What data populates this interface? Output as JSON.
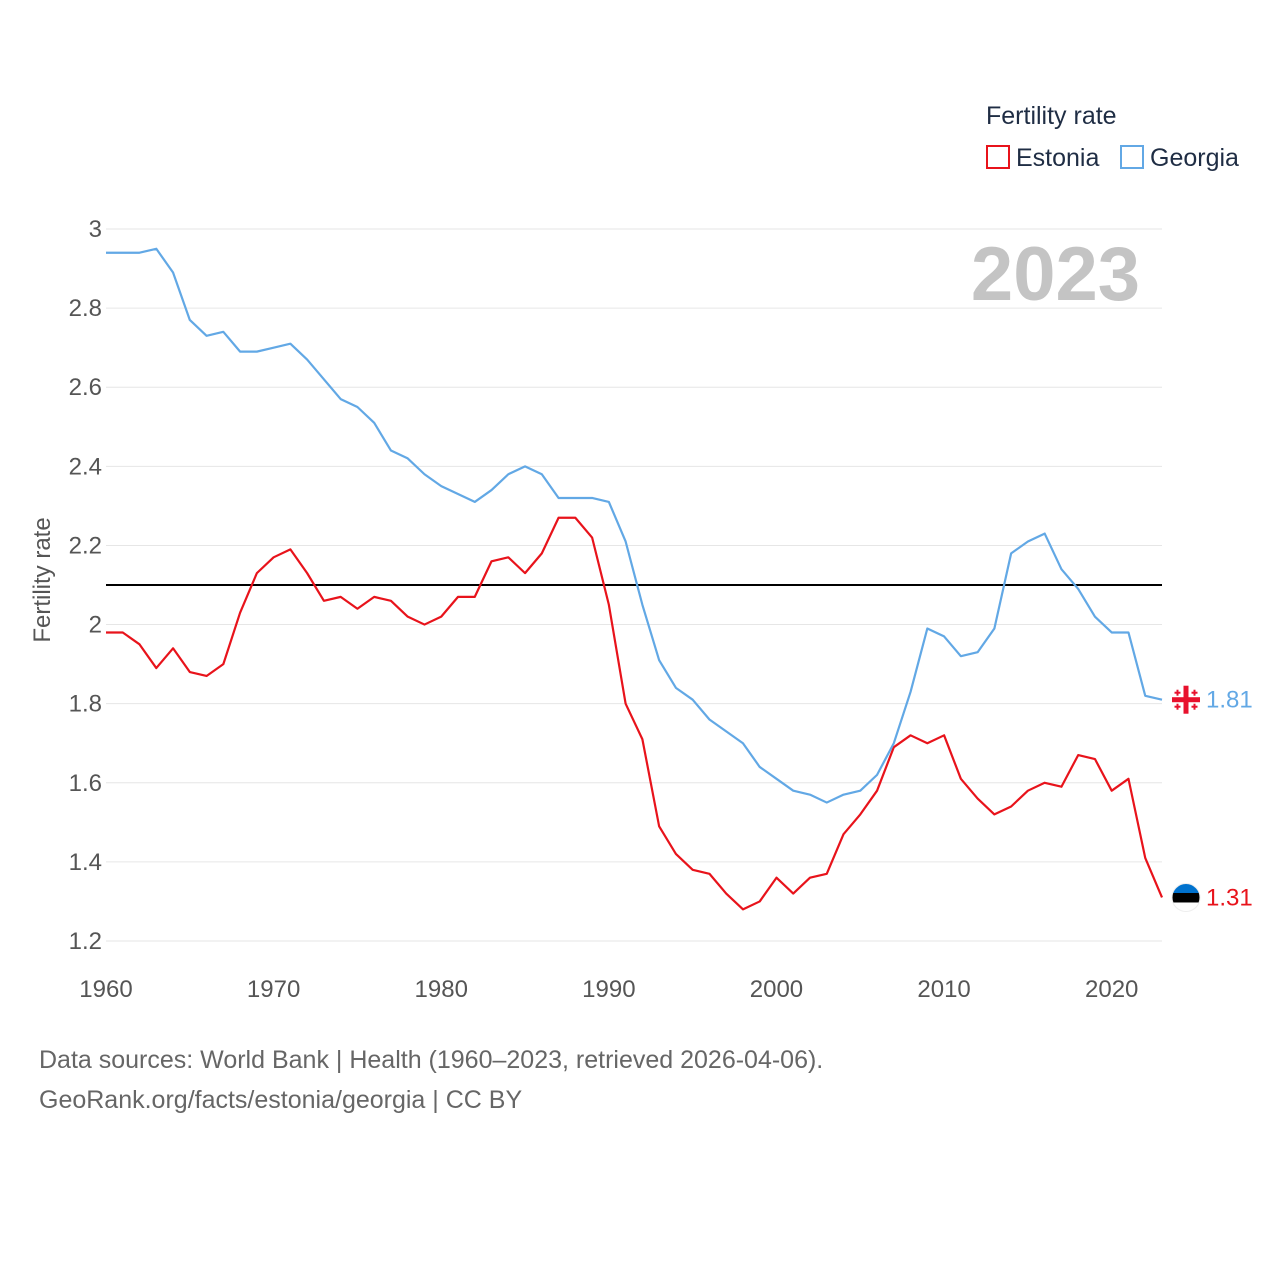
{
  "chart_data": {
    "type": "line",
    "title": "Fertility rate",
    "ylabel": "Fertility rate",
    "xlabel": "",
    "ylim": [
      1.2,
      3.0
    ],
    "xlim": [
      1960,
      2023
    ],
    "xticks": [
      1960,
      1970,
      1980,
      1990,
      2000,
      2010,
      2020
    ],
    "yticks": [
      1.2,
      1.4,
      1.6,
      1.8,
      2,
      2.2,
      2.4,
      2.6,
      2.8,
      3
    ],
    "reference_line": 2.1,
    "year_label": "2023",
    "x": [
      1960,
      1961,
      1962,
      1963,
      1964,
      1965,
      1966,
      1967,
      1968,
      1969,
      1970,
      1971,
      1972,
      1973,
      1974,
      1975,
      1976,
      1977,
      1978,
      1979,
      1980,
      1981,
      1982,
      1983,
      1984,
      1985,
      1986,
      1987,
      1988,
      1989,
      1990,
      1991,
      1992,
      1993,
      1994,
      1995,
      1996,
      1997,
      1998,
      1999,
      2000,
      2001,
      2002,
      2003,
      2004,
      2005,
      2006,
      2007,
      2008,
      2009,
      2010,
      2011,
      2012,
      2013,
      2014,
      2015,
      2016,
      2017,
      2018,
      2019,
      2020,
      2021,
      2022,
      2023
    ],
    "series": [
      {
        "name": "Estonia",
        "color": "#e8131b",
        "end_label": "1.31",
        "values": [
          1.98,
          1.98,
          1.95,
          1.89,
          1.94,
          1.88,
          1.87,
          1.9,
          2.03,
          2.13,
          2.17,
          2.19,
          2.13,
          2.06,
          2.07,
          2.04,
          2.07,
          2.06,
          2.02,
          2.0,
          2.02,
          2.07,
          2.07,
          2.16,
          2.17,
          2.13,
          2.18,
          2.27,
          2.27,
          2.22,
          2.05,
          1.8,
          1.71,
          1.49,
          1.42,
          1.38,
          1.37,
          1.32,
          1.28,
          1.3,
          1.36,
          1.32,
          1.36,
          1.37,
          1.47,
          1.52,
          1.58,
          1.69,
          1.72,
          1.7,
          1.72,
          1.61,
          1.56,
          1.52,
          1.54,
          1.58,
          1.6,
          1.59,
          1.67,
          1.66,
          1.58,
          1.61,
          1.41,
          1.31
        ]
      },
      {
        "name": "Georgia",
        "color": "#62a8e5",
        "end_label": "1.81",
        "values": [
          2.94,
          2.94,
          2.94,
          2.95,
          2.89,
          2.77,
          2.73,
          2.74,
          2.69,
          2.69,
          2.7,
          2.71,
          2.67,
          2.62,
          2.57,
          2.55,
          2.51,
          2.44,
          2.42,
          2.38,
          2.35,
          2.33,
          2.31,
          2.34,
          2.38,
          2.4,
          2.38,
          2.32,
          2.32,
          2.32,
          2.31,
          2.21,
          2.05,
          1.91,
          1.84,
          1.81,
          1.76,
          1.73,
          1.7,
          1.64,
          1.61,
          1.58,
          1.57,
          1.55,
          1.57,
          1.58,
          1.62,
          1.7,
          1.83,
          1.99,
          1.97,
          1.92,
          1.93,
          1.99,
          2.18,
          2.21,
          2.23,
          2.14,
          2.09,
          2.02,
          1.98,
          1.98,
          1.82,
          1.81
        ]
      }
    ]
  },
  "footer": {
    "line1": "Data sources: World Bank | Health (1960–2023, retrieved 2026-04-06).",
    "line2": "GeoRank.org/facts/estonia/georgia | CC BY"
  }
}
